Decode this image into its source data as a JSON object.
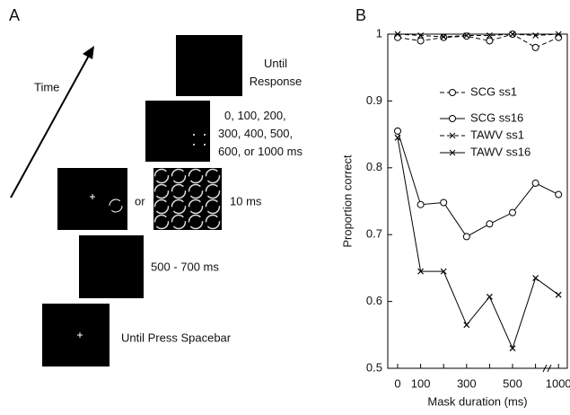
{
  "panel_a": {
    "label": "A",
    "time": "Time",
    "steps": [
      {
        "text": [
          "Until",
          "Response"
        ]
      },
      {
        "text": [
          "0, 100, 200,",
          "300, 400, 500,",
          "600, or 1000 ms"
        ]
      },
      {
        "text": [
          "10 ms"
        ],
        "or": "or"
      },
      {
        "text": [
          "500 - 700 ms"
        ]
      },
      {
        "text": [
          "Until Press Spacebar"
        ]
      }
    ]
  },
  "chart_data": {
    "type": "line",
    "label": "B",
    "xlabel": "Mask duration (ms)",
    "ylabel": "Proportion correct",
    "categories": [
      "0",
      "100",
      null,
      "300",
      null,
      "500",
      null,
      "1000"
    ],
    "ylim": [
      0.5,
      1
    ],
    "yticks": [
      0.5,
      0.6,
      0.7,
      0.8,
      0.9,
      1
    ],
    "series": [
      {
        "name": "SCG ss1",
        "color": "#000000",
        "marker": "circle",
        "dashed": true,
        "values": [
          0.995,
          0.99,
          0.995,
          0.997,
          0.99,
          1.0,
          0.98,
          0.995
        ]
      },
      {
        "name": "SCG ss16",
        "color": "#000000",
        "marker": "circle",
        "dashed": false,
        "values": [
          0.855,
          0.745,
          0.748,
          0.697,
          0.716,
          0.733,
          0.777,
          0.76
        ]
      },
      {
        "name": "TAWV ss1",
        "color": "#000000",
        "marker": "x",
        "dashed": true,
        "values": [
          1.0,
          0.998,
          0.996,
          0.998,
          0.998,
          1.0,
          0.998,
          1.0
        ]
      },
      {
        "name": "TAWV ss16",
        "color": "#000000",
        "marker": "x",
        "dashed": false,
        "values": [
          0.845,
          0.645,
          0.645,
          0.565,
          0.607,
          0.53,
          0.635,
          0.61
        ]
      }
    ]
  }
}
